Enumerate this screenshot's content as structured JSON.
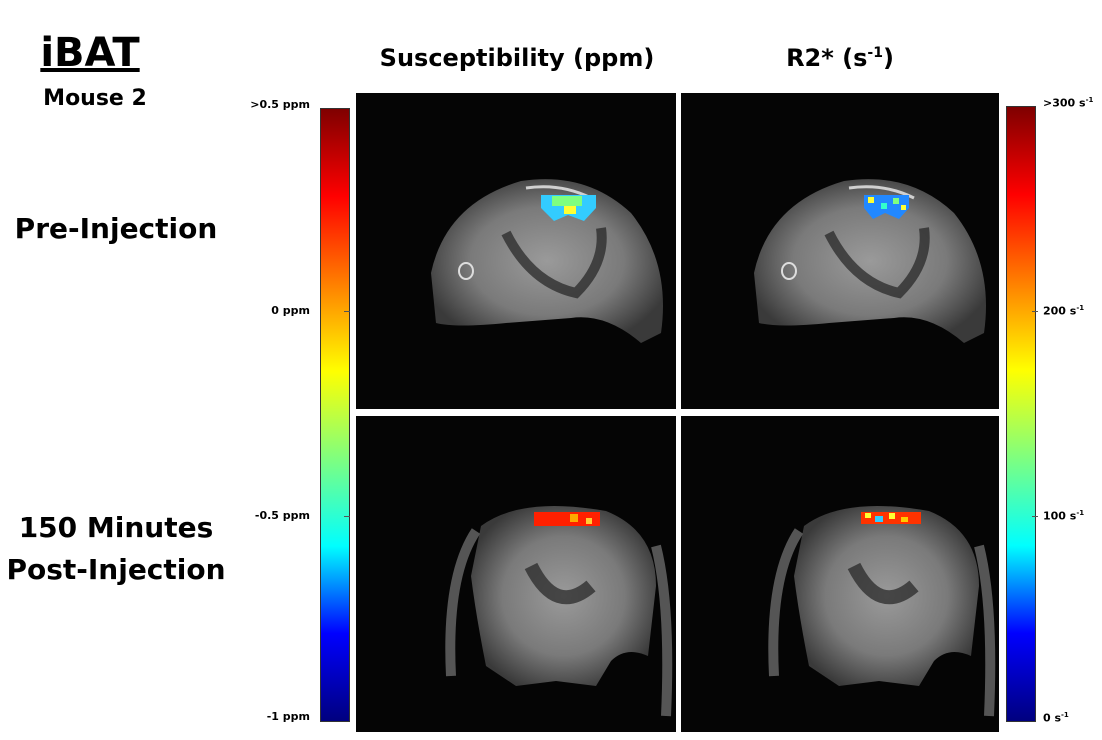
{
  "title": "iBAT",
  "subtitle": "Mouse 2",
  "row_labels": {
    "pre": "Pre-Injection",
    "post_line1": "150 Minutes",
    "post_line2": "Post-Injection"
  },
  "columns": {
    "susceptibility": "Susceptibility (ppm)",
    "r2star_base": "R2* (s",
    "r2star_sup": "-1",
    "r2star_end": ")"
  },
  "left_colorbar": {
    "ticks": [
      ">0.5 ppm",
      "0 ppm",
      "-0.5 ppm",
      "-1 ppm"
    ]
  },
  "right_colorbar": {
    "ticks": [
      {
        "base": ">300 s",
        "sup": "-1"
      },
      {
        "base": "200 s",
        "sup": "-1"
      },
      {
        "base": "100 s",
        "sup": "-1"
      },
      {
        "base": "0 s",
        "sup": "-1"
      }
    ]
  },
  "colors": {
    "jet": [
      "#00007f",
      "#0000ff",
      "#00ffff",
      "#7fff7f",
      "#ffff00",
      "#ff7f00",
      "#ff0000",
      "#7f0000"
    ]
  }
}
